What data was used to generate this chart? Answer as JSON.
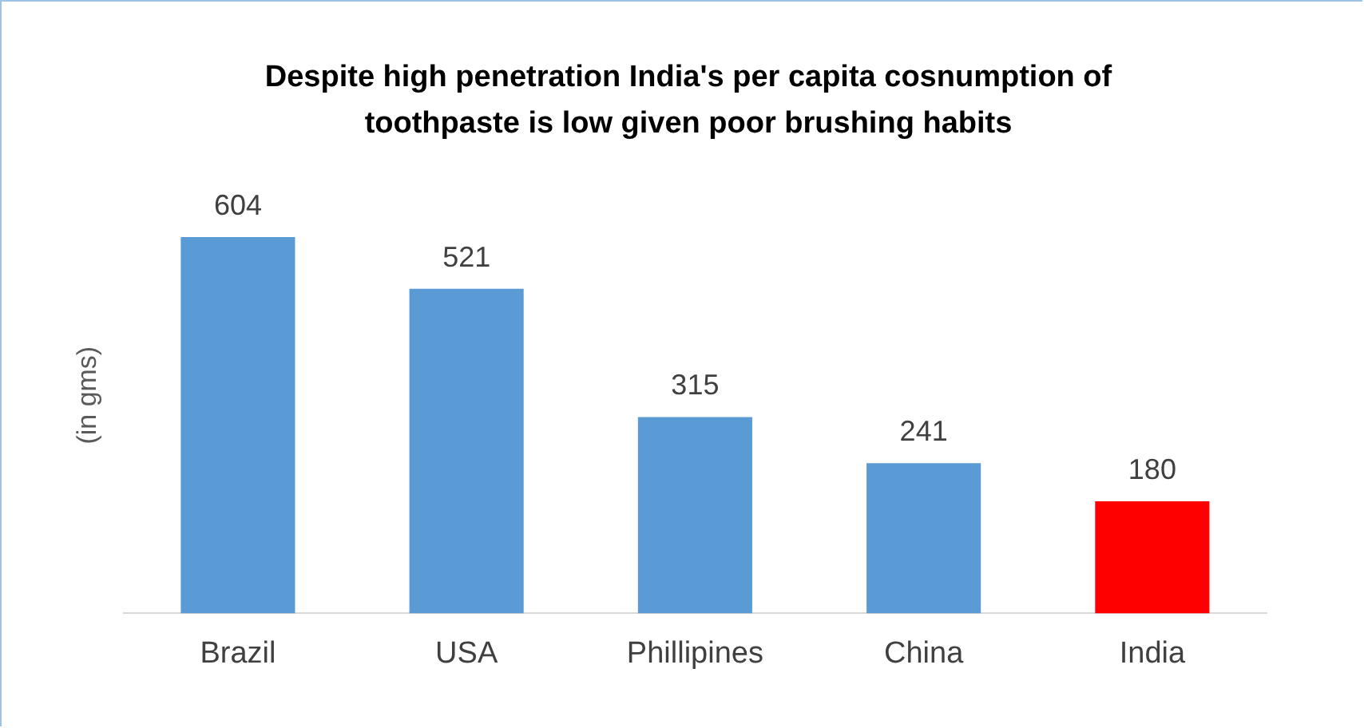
{
  "chart_data": {
    "type": "bar",
    "title": "Despite high penetration India's per capita cosnumption of toothpaste is low given poor brushing habits",
    "ylabel": "(in gms)",
    "categories": [
      "Brazil",
      "USA",
      "Phillipines",
      "China",
      "India"
    ],
    "values": [
      604,
      521,
      315,
      241,
      180
    ],
    "colors": [
      "#5b9bd5",
      "#5b9bd5",
      "#5b9bd5",
      "#5b9bd5",
      "#ff0000"
    ],
    "data_labels": true,
    "grid": false,
    "legend": false
  }
}
